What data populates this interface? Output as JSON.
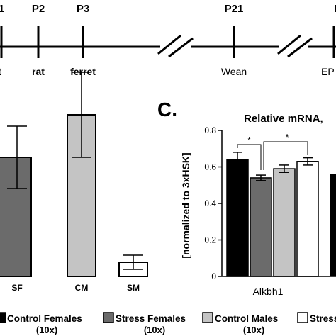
{
  "timeline": {
    "top_labels": [
      "1",
      "P2",
      "P3",
      "P21",
      "P"
    ],
    "bottom_labels": [
      "t",
      "rat",
      "ferret",
      "Wean",
      "EP"
    ]
  },
  "panel_c_label": "C.",
  "chart_data": [
    {
      "type": "bar",
      "panel": "B (cropped)",
      "categories": [
        "SF",
        "CM",
        "SM"
      ],
      "values": [
        0.42,
        0.57,
        0.05
      ],
      "errors": [
        0.11,
        0.15,
        0.025
      ],
      "colors": [
        "#6b6b6b",
        "#c4c4c4",
        "#ffffff"
      ],
      "grid": false
    },
    {
      "type": "bar",
      "panel": "C",
      "title": "Relative mRNA,",
      "ylabel": "[normalized to 3xHSK]",
      "xlabel": "Alkbh1",
      "ylim": [
        0,
        0.8
      ],
      "yticks": [
        "0",
        "0.2",
        "0.4",
        "0.6",
        "0.8"
      ],
      "series": [
        {
          "name": "Control Females",
          "value": 0.64,
          "error": 0.04,
          "color": "#000000"
        },
        {
          "name": "Stress Females",
          "value": 0.54,
          "error": 0.015,
          "color": "#6b6b6b"
        },
        {
          "name": "Control Males",
          "value": 0.59,
          "error": 0.02,
          "color": "#c4c4c4"
        },
        {
          "name": "Stress Males",
          "value": 0.63,
          "error": 0.02,
          "color": "#ffffff"
        }
      ],
      "significance": [
        "*",
        "*"
      ],
      "grid": false
    }
  ],
  "legend": [
    {
      "label": "Control Females",
      "sub": "(10x)",
      "color": "#000000"
    },
    {
      "label": "Stress Females",
      "sub": "(10x)",
      "color": "#6b6b6b"
    },
    {
      "label": "Control Males",
      "sub": "(10x)",
      "color": "#c4c4c4"
    },
    {
      "label": "Stress",
      "sub": "",
      "color": "#ffffff"
    }
  ]
}
